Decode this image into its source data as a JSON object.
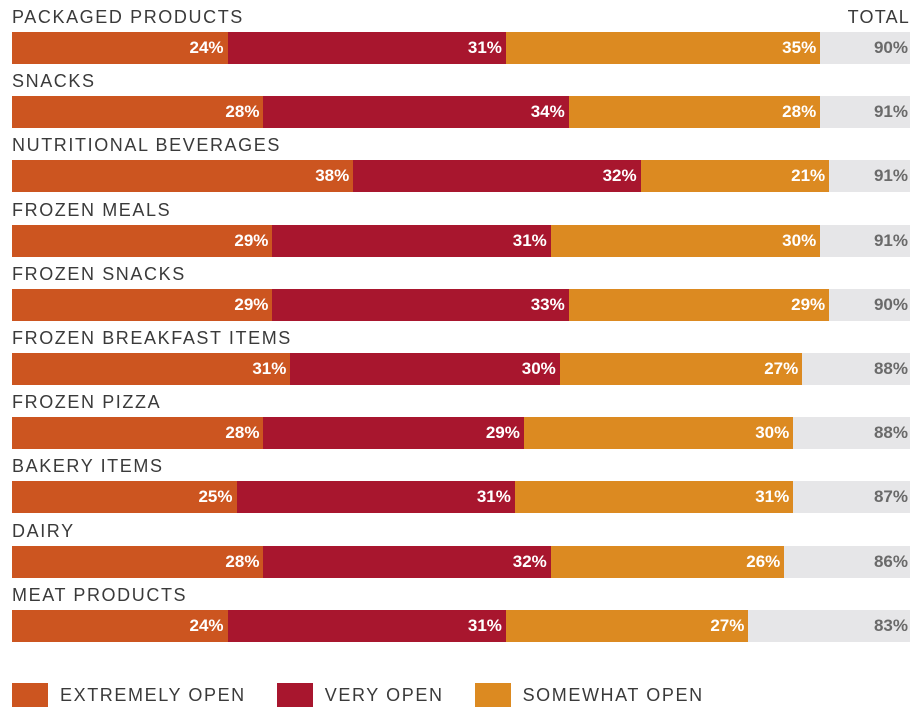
{
  "colors": {
    "extremely": "#cc5520",
    "very": "#a8162e",
    "somewhat": "#dc8a21",
    "track": "#e6e6e8"
  },
  "chart_data": {
    "type": "bar",
    "orientation": "horizontal",
    "stacked": true,
    "title": "",
    "total_header": "TOTAL",
    "value_max": 100,
    "legend_position": "bottom-left",
    "categories": [
      "PACKAGED PRODUCTS",
      "SNACKS",
      "NUTRITIONAL BEVERAGES",
      "FROZEN MEALS",
      "FROZEN SNACKS",
      "FROZEN BREAKFAST ITEMS",
      "FROZEN PIZZA",
      "BAKERY ITEMS",
      "DAIRY",
      "MEAT PRODUCTS"
    ],
    "series": [
      {
        "name": "EXTREMELY OPEN",
        "key": "extremely",
        "values": [
          24,
          28,
          38,
          29,
          29,
          31,
          28,
          25,
          28,
          24
        ]
      },
      {
        "name": "VERY OPEN",
        "key": "very",
        "values": [
          31,
          34,
          32,
          31,
          33,
          30,
          29,
          31,
          32,
          31
        ]
      },
      {
        "name": "SOMEWHAT OPEN",
        "key": "somewhat",
        "values": [
          35,
          28,
          21,
          30,
          29,
          27,
          30,
          31,
          26,
          27
        ]
      }
    ],
    "totals": [
      90,
      91,
      91,
      91,
      90,
      88,
      88,
      87,
      86,
      83
    ]
  }
}
